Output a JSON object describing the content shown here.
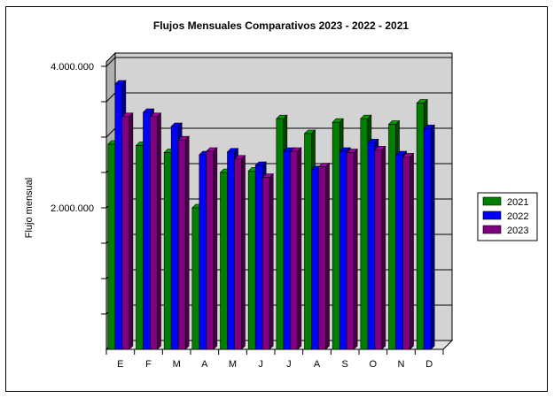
{
  "chart_data": {
    "type": "bar",
    "title": "Flujos Mensuales Comparativos 2023 - 2022 - 2021",
    "xlabel": "",
    "ylabel": "Flujo mensual",
    "categories": [
      "E",
      "F",
      "M",
      "A",
      "M",
      "J",
      "J",
      "A",
      "S",
      "O",
      "N",
      "D"
    ],
    "ylim": [
      0,
      4100000
    ],
    "yticks": [
      {
        "value": 4000000,
        "label": "4.000.000"
      },
      {
        "value": 2000000,
        "label": "2.000.000"
      }
    ],
    "gridlines": [
      500000,
      1000000,
      1500000,
      2000000,
      2500000,
      3000000,
      3500000,
      4000000
    ],
    "grid": true,
    "legend_position": "right",
    "series": [
      {
        "name": "2021",
        "color": "#008000",
        "values": [
          2900000,
          2880000,
          2780000,
          2000000,
          2500000,
          2520000,
          3260000,
          3050000,
          3210000,
          3260000,
          3180000,
          3480000
        ]
      },
      {
        "name": "2022",
        "color": "#0000ff",
        "values": [
          3750000,
          3350000,
          3150000,
          2750000,
          2790000,
          2600000,
          2800000,
          2540000,
          2800000,
          2920000,
          2750000,
          3120000
        ]
      },
      {
        "name": "2023",
        "color": "#800080",
        "values": [
          3290000,
          3290000,
          2960000,
          2800000,
          2690000,
          2430000,
          2800000,
          2580000,
          2780000,
          2820000,
          2720000,
          null
        ]
      }
    ]
  }
}
